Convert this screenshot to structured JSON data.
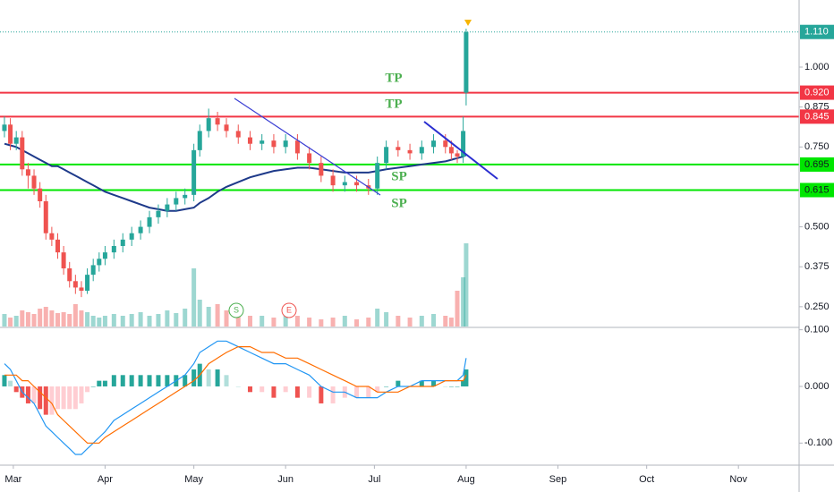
{
  "chart_data": {
    "type": "candlestick",
    "xlim": [
      55.5,
      325.5
    ],
    "xticks": [
      {
        "value": 60,
        "label": "Mar"
      },
      {
        "value": 91,
        "label": "Apr"
      },
      {
        "value": 121,
        "label": "May"
      },
      {
        "value": 152,
        "label": "Jun"
      },
      {
        "value": 182,
        "label": "Jul"
      },
      {
        "value": 213,
        "label": "Aug"
      },
      {
        "value": 244,
        "label": "Sep"
      },
      {
        "value": 274,
        "label": "Oct"
      },
      {
        "value": 305,
        "label": "Nov"
      }
    ],
    "ylim": [
      0.188,
      1.21
    ],
    "yticks": [
      {
        "value": 1.0,
        "label": "1.000"
      },
      {
        "value": 0.875,
        "label": "0.875"
      },
      {
        "value": 0.75,
        "label": "0.750"
      },
      {
        "value": 0.5,
        "label": "0.500"
      },
      {
        "value": 0.375,
        "label": "0.375"
      },
      {
        "value": 0.25,
        "label": "0.250"
      }
    ],
    "up_color": "#26a69a",
    "down_color": "#ef5350",
    "ma_color": "#1e3a8a",
    "x": [
      57,
      59,
      61,
      63,
      65,
      67,
      69,
      71,
      73,
      75,
      77,
      79,
      81,
      83,
      85,
      87,
      89,
      91,
      94,
      97,
      100,
      103,
      106,
      109,
      112,
      115,
      118,
      121,
      123,
      126,
      129,
      132,
      136,
      140,
      144,
      148,
      152,
      156,
      160,
      164,
      168,
      172,
      176,
      180,
      183,
      186,
      190,
      194,
      198,
      202,
      206,
      208,
      210,
      212,
      213
    ],
    "open": [
      0.8,
      0.82,
      0.76,
      0.78,
      0.68,
      0.66,
      0.62,
      0.58,
      0.48,
      0.46,
      0.42,
      0.37,
      0.33,
      0.31,
      0.3,
      0.35,
      0.38,
      0.4,
      0.42,
      0.44,
      0.46,
      0.48,
      0.5,
      0.53,
      0.55,
      0.57,
      0.59,
      0.6,
      0.74,
      0.8,
      0.84,
      0.82,
      0.8,
      0.78,
      0.76,
      0.77,
      0.75,
      0.77,
      0.73,
      0.7,
      0.66,
      0.63,
      0.64,
      0.63,
      0.62,
      0.7,
      0.75,
      0.74,
      0.73,
      0.75,
      0.77,
      0.75,
      0.73,
      0.72,
      0.92
    ],
    "high": [
      0.845,
      0.84,
      0.8,
      0.8,
      0.7,
      0.68,
      0.64,
      0.6,
      0.5,
      0.48,
      0.44,
      0.39,
      0.35,
      0.33,
      0.37,
      0.4,
      0.42,
      0.44,
      0.46,
      0.48,
      0.5,
      0.52,
      0.55,
      0.57,
      0.59,
      0.61,
      0.62,
      0.76,
      0.82,
      0.87,
      0.86,
      0.84,
      0.82,
      0.8,
      0.79,
      0.79,
      0.79,
      0.79,
      0.75,
      0.72,
      0.68,
      0.66,
      0.66,
      0.65,
      0.72,
      0.77,
      0.77,
      0.76,
      0.77,
      0.79,
      0.79,
      0.77,
      0.74,
      0.845,
      1.12
    ],
    "low": [
      0.78,
      0.74,
      0.74,
      0.66,
      0.62,
      0.6,
      0.56,
      0.46,
      0.44,
      0.4,
      0.35,
      0.31,
      0.29,
      0.28,
      0.29,
      0.33,
      0.36,
      0.38,
      0.4,
      0.42,
      0.44,
      0.46,
      0.48,
      0.51,
      0.53,
      0.55,
      0.57,
      0.58,
      0.72,
      0.78,
      0.8,
      0.78,
      0.76,
      0.74,
      0.74,
      0.73,
      0.73,
      0.71,
      0.68,
      0.64,
      0.61,
      0.61,
      0.61,
      0.6,
      0.6,
      0.68,
      0.72,
      0.71,
      0.71,
      0.73,
      0.73,
      0.71,
      0.7,
      0.7,
      0.88
    ],
    "close": [
      0.82,
      0.76,
      0.78,
      0.68,
      0.66,
      0.62,
      0.58,
      0.48,
      0.46,
      0.42,
      0.37,
      0.33,
      0.31,
      0.3,
      0.35,
      0.38,
      0.4,
      0.42,
      0.44,
      0.46,
      0.48,
      0.5,
      0.53,
      0.55,
      0.57,
      0.59,
      0.6,
      0.74,
      0.8,
      0.84,
      0.82,
      0.8,
      0.78,
      0.76,
      0.77,
      0.75,
      0.77,
      0.73,
      0.7,
      0.66,
      0.63,
      0.64,
      0.63,
      0.62,
      0.7,
      0.75,
      0.74,
      0.73,
      0.75,
      0.77,
      0.75,
      0.73,
      0.72,
      0.8,
      1.11
    ],
    "volume": [
      14,
      10,
      12,
      18,
      16,
      14,
      20,
      22,
      18,
      15,
      16,
      14,
      25,
      18,
      16,
      12,
      10,
      12,
      14,
      12,
      14,
      16,
      12,
      14,
      18,
      15,
      20,
      65,
      30,
      22,
      25,
      18,
      14,
      12,
      12,
      10,
      14,
      12,
      10,
      8,
      10,
      12,
      8,
      10,
      20,
      16,
      12,
      10,
      12,
      14,
      12,
      10,
      40,
      55,
      93
    ],
    "ma": [
      0.76,
      0.755,
      0.75,
      0.74,
      0.73,
      0.72,
      0.71,
      0.7,
      0.69,
      0.69,
      0.68,
      0.67,
      0.66,
      0.65,
      0.64,
      0.63,
      0.62,
      0.61,
      0.6,
      0.59,
      0.58,
      0.57,
      0.56,
      0.555,
      0.55,
      0.55,
      0.555,
      0.56,
      0.575,
      0.59,
      0.61,
      0.625,
      0.64,
      0.655,
      0.665,
      0.675,
      0.68,
      0.685,
      0.685,
      0.68,
      0.675,
      0.67,
      0.67,
      0.67,
      0.675,
      0.68,
      0.685,
      0.69,
      0.695,
      0.7,
      0.705,
      0.71,
      0.715,
      0.72,
      0.725
    ],
    "levels": [
      {
        "value": 0.92,
        "label": "0.920",
        "color": "#f23645"
      },
      {
        "value": 0.845,
        "label": "0.845",
        "color": "#f23645"
      },
      {
        "value": 0.695,
        "label": "0.695",
        "color": "#00e600"
      },
      {
        "value": 0.615,
        "label": "0.615",
        "color": "#00e600"
      }
    ],
    "last": {
      "value": 1.11,
      "label": "1.110",
      "color": "#26a69a"
    },
    "annotations": [
      "TP",
      "TP",
      "SP",
      "SP"
    ],
    "events": [
      "S",
      "E"
    ],
    "macd": {
      "ylim": [
        -0.139,
        0.101
      ],
      "yticks": [
        {
          "value": 0.1,
          "label": "0.100"
        },
        {
          "value": 0.0,
          "label": "0.000"
        },
        {
          "value": -0.1,
          "label": "-0.100"
        }
      ],
      "macd_color": "#2196f3",
      "signal_color": "#ff6d00",
      "macd": [
        0.04,
        0.03,
        0.01,
        -0.01,
        -0.02,
        -0.03,
        -0.05,
        -0.07,
        -0.08,
        -0.09,
        -0.1,
        -0.11,
        -0.12,
        -0.12,
        -0.11,
        -0.1,
        -0.09,
        -0.08,
        -0.06,
        -0.05,
        -0.04,
        -0.03,
        -0.02,
        -0.01,
        0.0,
        0.01,
        0.02,
        0.04,
        0.06,
        0.07,
        0.08,
        0.08,
        0.07,
        0.06,
        0.05,
        0.04,
        0.04,
        0.03,
        0.02,
        0.0,
        -0.01,
        -0.01,
        -0.02,
        -0.02,
        -0.02,
        -0.01,
        0.0,
        0.0,
        0.01,
        0.01,
        0.01,
        0.01,
        0.01,
        0.02,
        0.05
      ],
      "signal": [
        0.02,
        0.02,
        0.02,
        0.01,
        0.01,
        0.0,
        -0.01,
        -0.02,
        -0.03,
        -0.05,
        -0.06,
        -0.07,
        -0.08,
        -0.09,
        -0.1,
        -0.1,
        -0.1,
        -0.09,
        -0.08,
        -0.07,
        -0.06,
        -0.05,
        -0.04,
        -0.03,
        -0.02,
        -0.01,
        0.0,
        0.01,
        0.02,
        0.04,
        0.05,
        0.06,
        0.07,
        0.07,
        0.06,
        0.06,
        0.05,
        0.05,
        0.04,
        0.03,
        0.02,
        0.01,
        0.0,
        0.0,
        -0.01,
        -0.01,
        -0.01,
        0.0,
        0.0,
        0.0,
        0.01,
        0.01,
        0.01,
        0.01,
        0.02
      ],
      "hist": [
        0.02,
        0.01,
        -0.01,
        -0.02,
        -0.03,
        -0.03,
        -0.04,
        -0.05,
        -0.05,
        -0.04,
        -0.04,
        -0.04,
        -0.04,
        -0.03,
        -0.01,
        0.0,
        0.01,
        0.01,
        0.02,
        0.02,
        0.02,
        0.02,
        0.02,
        0.02,
        0.02,
        0.02,
        0.02,
        0.03,
        0.04,
        0.03,
        0.03,
        0.02,
        0.0,
        -0.01,
        -0.01,
        -0.02,
        -0.01,
        -0.02,
        -0.02,
        -0.03,
        -0.03,
        -0.02,
        -0.02,
        -0.02,
        -0.01,
        0.0,
        0.01,
        0.0,
        0.01,
        0.01,
        0.0,
        0.0,
        0.0,
        0.01,
        0.03
      ]
    }
  }
}
